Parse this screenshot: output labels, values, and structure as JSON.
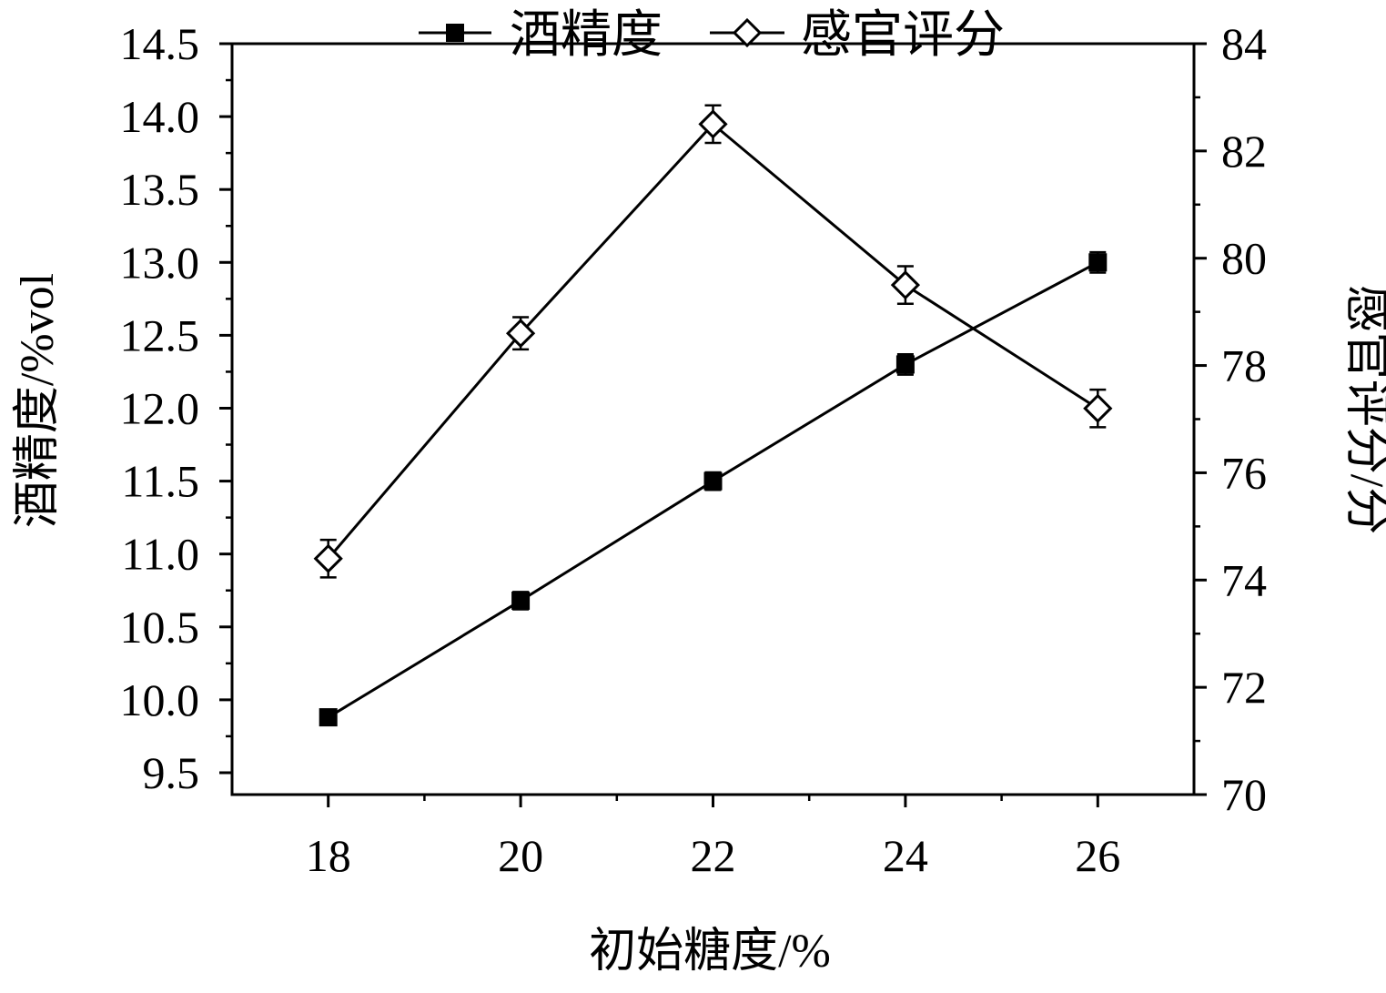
{
  "chart_data": {
    "type": "line",
    "title": "",
    "xlabel": "初始糖度/%",
    "ylabel_left": "酒精度/%vol",
    "ylabel_right": "感官评分/分",
    "x": [
      18,
      20,
      22,
      24,
      26
    ],
    "x_ticks": [
      "18",
      "20",
      "22",
      "24",
      "26"
    ],
    "xlim": [
      17,
      27
    ],
    "ylim_left": [
      9.35,
      14.5
    ],
    "ylim_right": [
      70,
      84
    ],
    "y_left_ticks": [
      "9.5",
      "10.0",
      "10.5",
      "11.0",
      "11.5",
      "12.0",
      "12.5",
      "13.0",
      "13.5",
      "14.0",
      "14.5"
    ],
    "y_right_ticks": [
      "70",
      "72",
      "74",
      "76",
      "78",
      "80",
      "82",
      "84"
    ],
    "grid": false,
    "legend_position": "top",
    "series": [
      {
        "name": "酒精度",
        "axis": "left",
        "marker": "filled-square",
        "values": [
          9.88,
          10.68,
          11.5,
          12.3,
          13.0
        ],
        "errors": [
          0.03,
          0.06,
          0.06,
          0.07,
          0.07
        ]
      },
      {
        "name": "感官评分",
        "axis": "right",
        "marker": "open-diamond",
        "values": [
          74.4,
          78.6,
          82.5,
          79.5,
          77.2
        ],
        "errors": [
          0.35,
          0.3,
          0.35,
          0.35,
          0.35
        ]
      }
    ]
  }
}
